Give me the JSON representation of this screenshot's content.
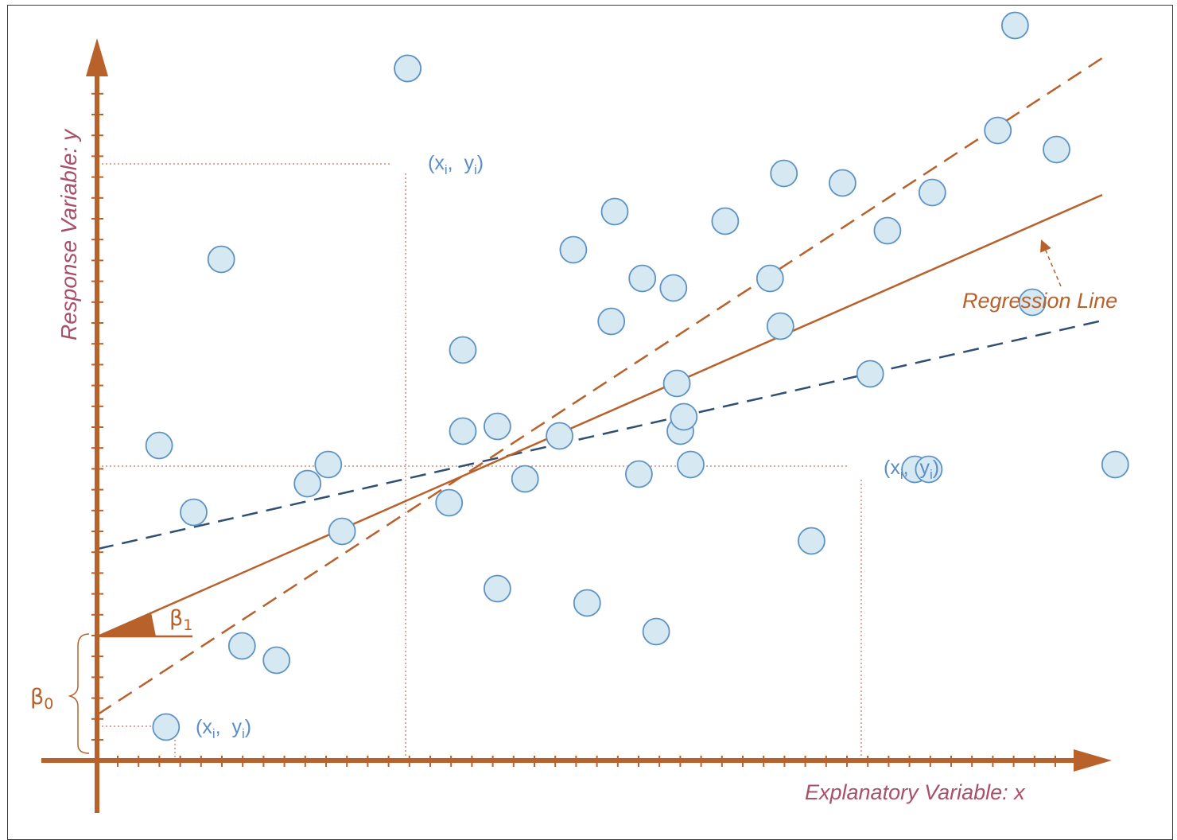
{
  "colors": {
    "axis": "#b8612b",
    "axis_label": "#a85068",
    "regression": "#b8612b",
    "dashed_brown": "#b8612b",
    "dashed_blue": "#2f4f73",
    "point_fill": "#d6e8f2",
    "point_stroke": "#5d93c4",
    "guide": "#d98a7a"
  },
  "labels": {
    "y_axis": "Response Variable: y",
    "x_axis": "Explanatory Variable: x",
    "regression": "Regression Line",
    "beta0": "β0",
    "beta1": "β1",
    "point_label": "(xi, yi)"
  },
  "chart_data": {
    "type": "scatter",
    "xlabel": "Explanatory Variable: x",
    "ylabel": "Response Variable: y",
    "points": [
      [
        1.8,
        6.6
      ],
      [
        3.6,
        10.5
      ],
      [
        4.2,
        2.4
      ],
      [
        2.8,
        5.2
      ],
      [
        6.7,
        6.2
      ],
      [
        6.1,
        5.8
      ],
      [
        5.2,
        2.1
      ],
      [
        7.1,
        4.8
      ],
      [
        9.0,
        14.5
      ],
      [
        10.6,
        8.6
      ],
      [
        10.6,
        6.9
      ],
      [
        10.2,
        5.4
      ],
      [
        11.6,
        7.0
      ],
      [
        11.6,
        3.6
      ],
      [
        12.4,
        5.9
      ],
      [
        13.4,
        6.8
      ],
      [
        13.8,
        10.7
      ],
      [
        14.2,
        3.3
      ],
      [
        15.0,
        11.5
      ],
      [
        14.9,
        9.2
      ],
      [
        15.8,
        10.1
      ],
      [
        15.7,
        6.0
      ],
      [
        16.8,
        7.9
      ],
      [
        16.9,
        6.9
      ],
      [
        16.2,
        2.7
      ],
      [
        17.0,
        7.2
      ],
      [
        17.2,
        6.2
      ],
      [
        16.7,
        9.9
      ],
      [
        18.2,
        11.3
      ],
      [
        19.5,
        10.1
      ],
      [
        19.9,
        12.3
      ],
      [
        19.8,
        9.1
      ],
      [
        20.7,
        4.6
      ],
      [
        21.6,
        12.1
      ],
      [
        22.4,
        8.1
      ],
      [
        22.9,
        11.1
      ],
      [
        23.7,
        6.1
      ],
      [
        24.2,
        11.9
      ],
      [
        26.1,
        13.2
      ],
      [
        26.6,
        15.4
      ],
      [
        27.1,
        9.6
      ],
      [
        27.8,
        12.8
      ],
      [
        29.5,
        6.2
      ]
    ],
    "labeled_points": [
      [
        2.0,
        0.7
      ],
      [
        9.0,
        14.5
      ],
      [
        24.1,
        6.1
      ]
    ]
  }
}
